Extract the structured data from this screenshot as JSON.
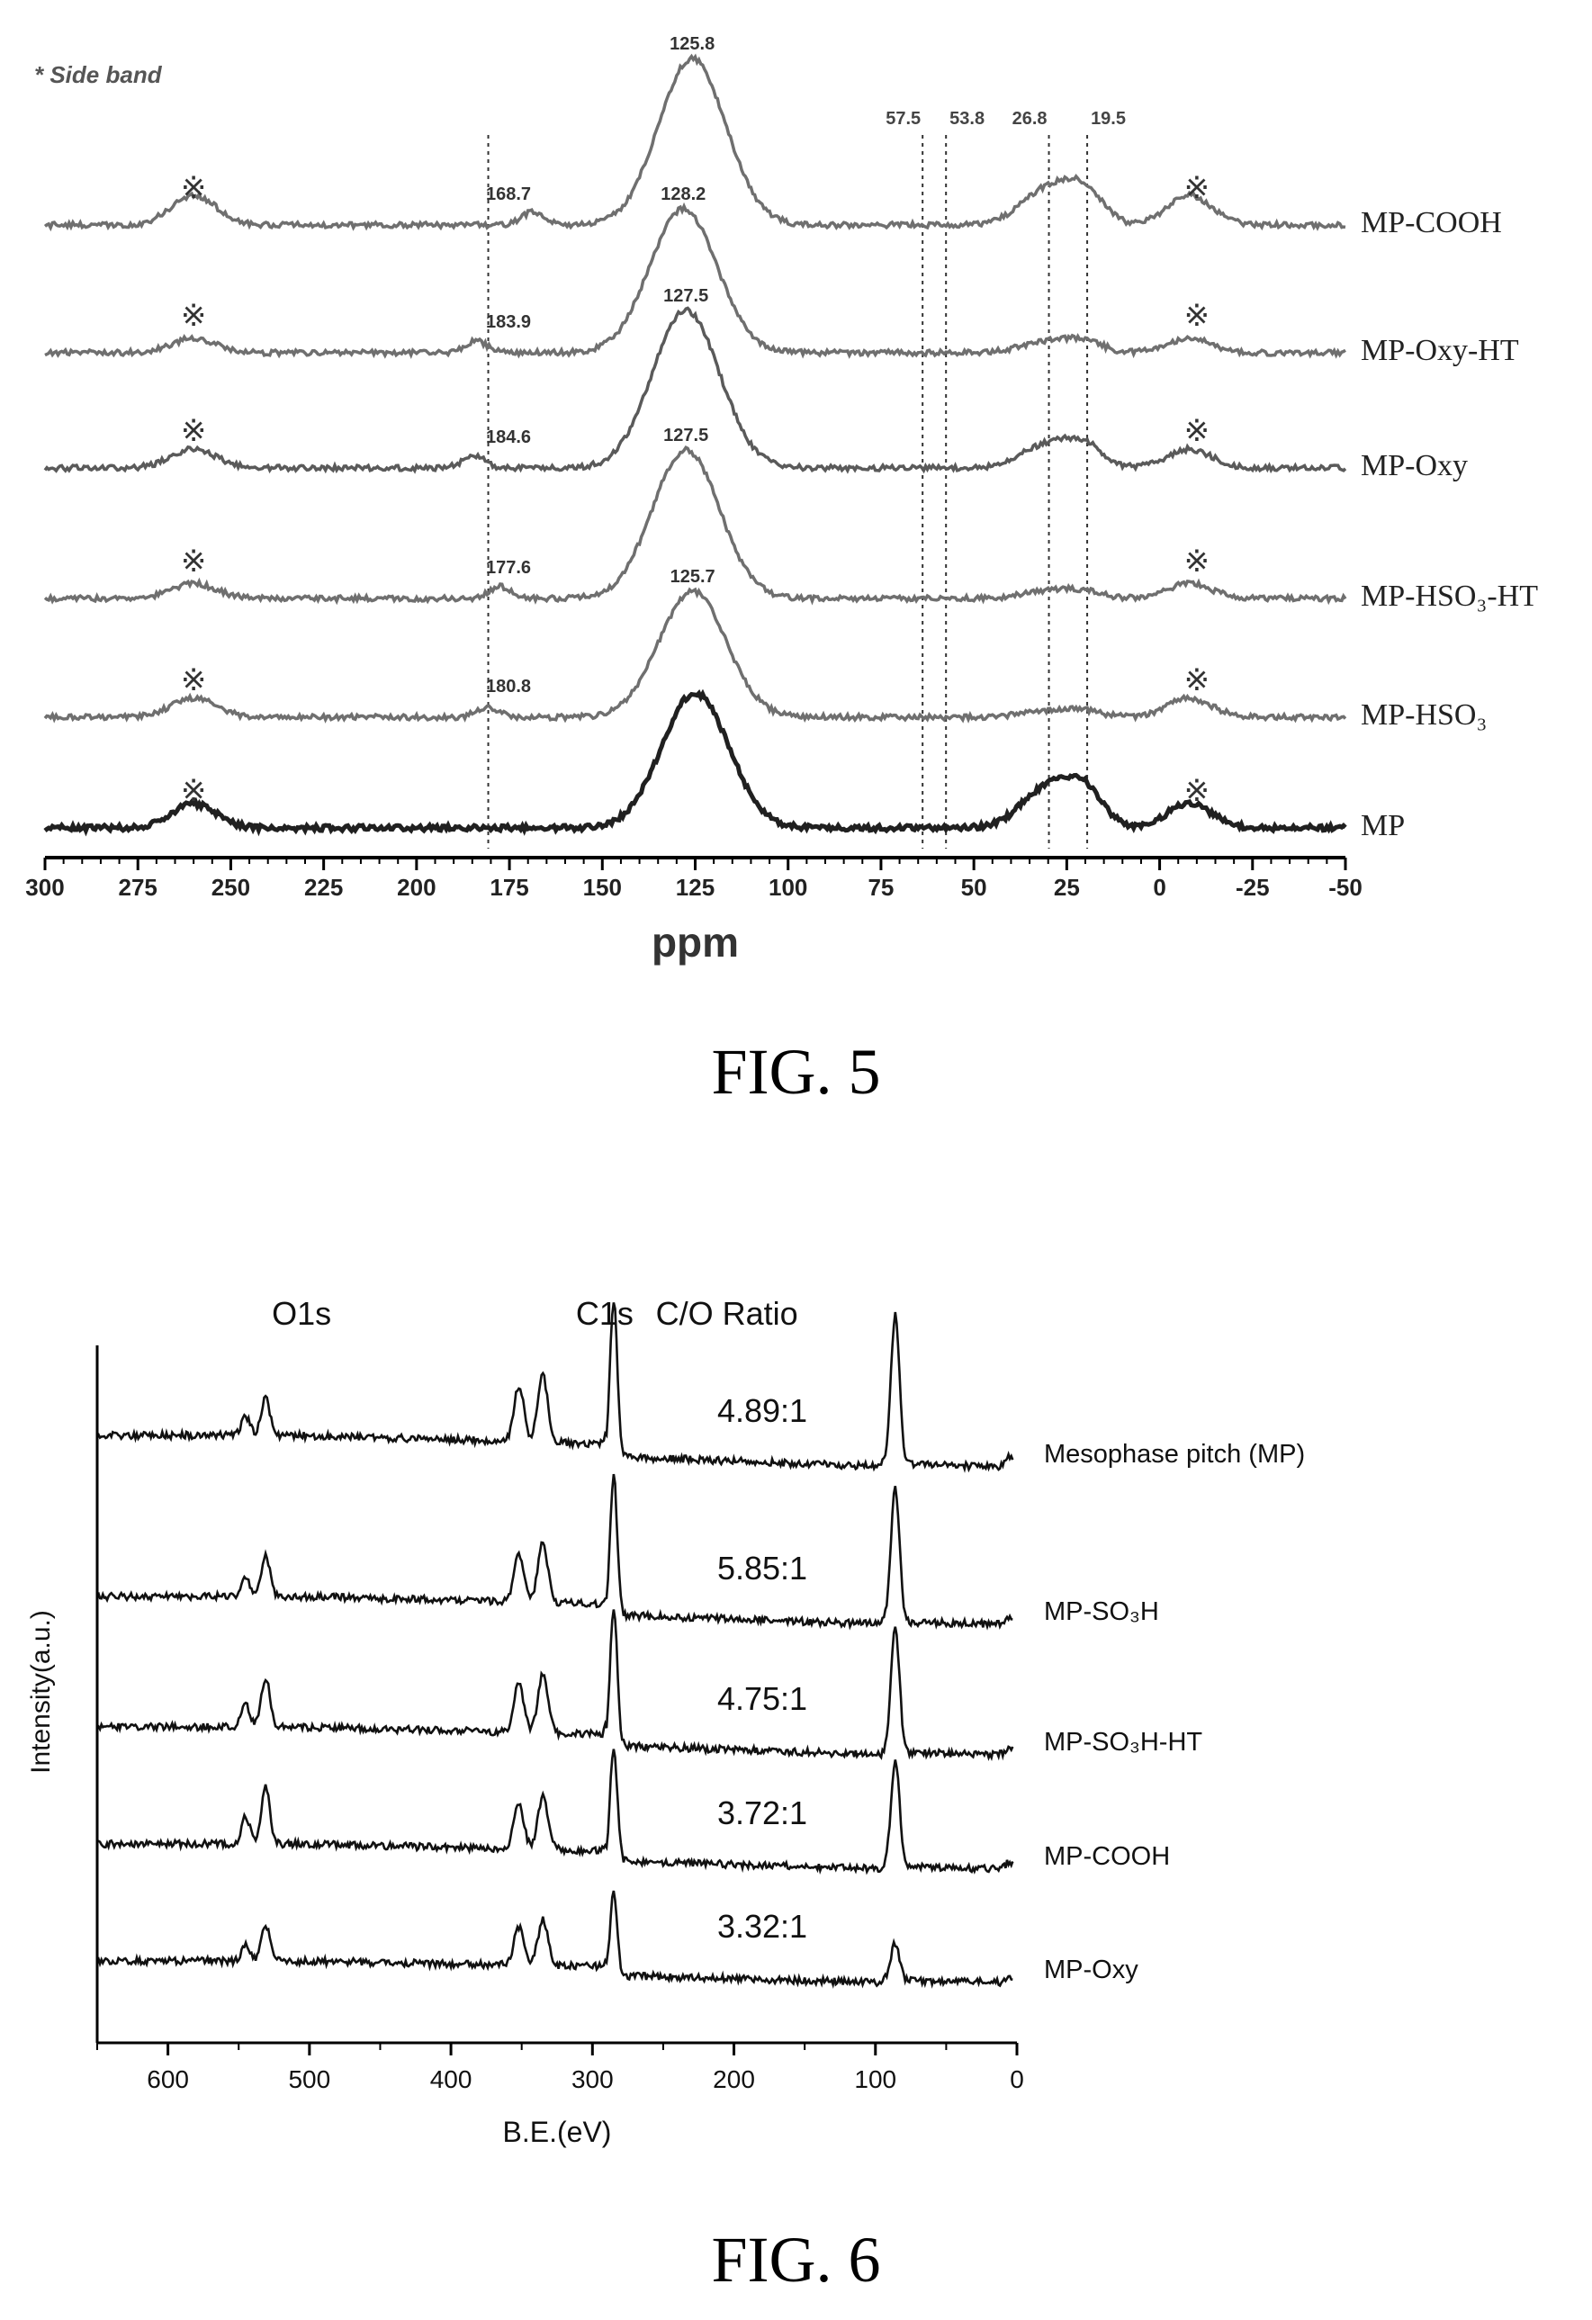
{
  "figures": {
    "fig5": {
      "caption": "FIG. 5"
    },
    "fig6": {
      "caption": "FIG. 6"
    }
  },
  "chart_data": [
    {
      "type": "line",
      "xlabel": "ppm",
      "ylabel": "",
      "xlim": [
        300,
        -50
      ],
      "x_ticks": [
        300,
        275,
        250,
        225,
        200,
        175,
        150,
        125,
        100,
        75,
        50,
        25,
        0,
        -25,
        -50
      ],
      "legend_note": "* Side band",
      "sideband_marker": "※",
      "sideband_positions_ppm": [
        260,
        -10
      ],
      "reference_lines_ppm": [
        180.7,
        63.8,
        57.5,
        29.8,
        19.5
      ],
      "top_labels": [
        "57.5",
        "53.8",
        "26.8",
        "19.5"
      ],
      "grid": false,
      "series": [
        {
          "name": "MP-COOH",
          "main_peak": 125.8,
          "main_label": "125.8",
          "carbonyl": 168.7,
          "carbonyl_label": "168.7",
          "amp": 1.0,
          "sideband_amp": 0.18,
          "aliphatic_amp": 0.22,
          "color": "#6f6f6f"
        },
        {
          "name": "MP-Oxy-HT",
          "main_peak": 128.2,
          "main_label": "128.2",
          "carbonyl": 183.9,
          "carbonyl_label": "183.9",
          "amp": 1.0,
          "sideband_amp": 0.1,
          "aliphatic_amp": 0.08,
          "color": "#6f6f6f"
        },
        {
          "name": "MP-Oxy",
          "main_peak": 127.5,
          "main_label": "127.5",
          "carbonyl": 184.6,
          "carbonyl_label": "184.6",
          "amp": 1.0,
          "sideband_amp": 0.12,
          "aliphatic_amp": 0.15,
          "color": "#5a5a5a"
        },
        {
          "name": "MP-HSO₃-HT",
          "main_peak": 127.5,
          "main_label": "127.5",
          "carbonyl": 177.6,
          "carbonyl_label": "177.6",
          "amp": 1.0,
          "sideband_amp": 0.1,
          "aliphatic_amp": 0.05,
          "color": "#6f6f6f"
        },
        {
          "name": "MP-HSO₃",
          "main_peak": 125.7,
          "main_label": "125.7",
          "carbonyl": 180.8,
          "carbonyl_label": "180.8",
          "amp": 1.0,
          "sideband_amp": 0.15,
          "aliphatic_amp": 0.05,
          "color": "#6f6f6f"
        },
        {
          "name": "MP",
          "main_peak": 125,
          "main_label": "",
          "carbonyl": null,
          "carbonyl_label": "",
          "amp": 1.0,
          "sideband_amp": 0.18,
          "aliphatic_amp": 0.3,
          "color": "#202020"
        }
      ]
    },
    {
      "type": "line",
      "xlabel": "B.E.(eV)",
      "ylabel": "Intensity(a.u.)",
      "xlim": [
        650,
        0
      ],
      "x_ticks": [
        600,
        500,
        400,
        300,
        200,
        100,
        0
      ],
      "grid": false,
      "peak_headers": [
        "O1s",
        "C1s",
        "C/O Ratio"
      ],
      "peak_positions_ev": [
        531,
        285,
        86
      ],
      "series": [
        {
          "name": "Mesophase pitch (MP)",
          "ratio": "4.89:1",
          "o_amp": 0.45,
          "c_amp": 1.0,
          "au_amp": 0.95
        },
        {
          "name": "MP-SO₃H",
          "ratio": "5.85:1",
          "o_amp": 0.55,
          "c_amp": 1.0,
          "au_amp": 0.95
        },
        {
          "name": "MP-SO₃H-HT",
          "ratio": "4.75:1",
          "o_amp": 0.65,
          "c_amp": 1.0,
          "au_amp": 0.9
        },
        {
          "name": "MP-COOH",
          "ratio": "3.72:1",
          "o_amp": 0.85,
          "c_amp": 0.9,
          "au_amp": 0.85
        },
        {
          "name": "MP-Oxy",
          "ratio": "3.32:1",
          "o_amp": 0.6,
          "c_amp": 0.75,
          "au_amp": 0.35
        }
      ]
    }
  ]
}
